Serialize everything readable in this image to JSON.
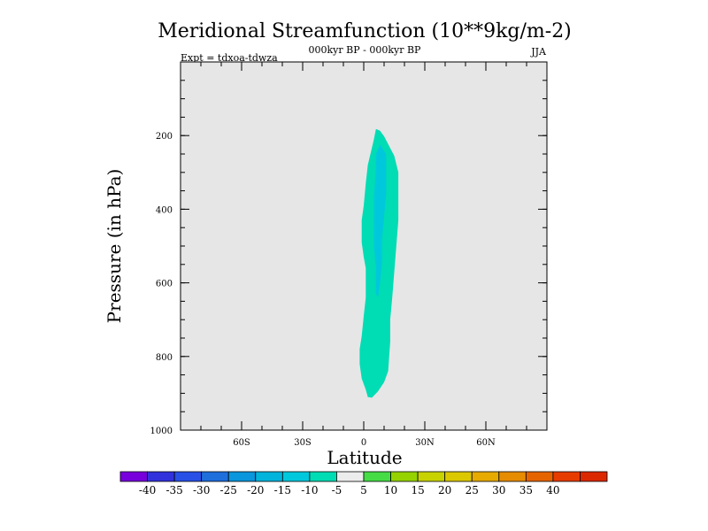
{
  "chart_data": {
    "type": "heatmap",
    "title": "Meridional Streamfunction (10**9kg/m-2)",
    "subtitle_center": "000kyr BP - 000kyr BP",
    "subtitle_left": "Expt = tdxoa-tdwza",
    "subtitle_right": "JJA",
    "xlabel": "Latitude",
    "ylabel": "Pressure (in hPa)",
    "xlim": [
      -90,
      90
    ],
    "ylim": [
      0,
      1000
    ],
    "y_inverted": true,
    "x_ticks": [
      {
        "value": -60,
        "label": "60S"
      },
      {
        "value": -30,
        "label": "30S"
      },
      {
        "value": 0,
        "label": "0"
      },
      {
        "value": 30,
        "label": "30N"
      },
      {
        "value": 60,
        "label": "60N"
      }
    ],
    "y_ticks": [
      {
        "value": 200,
        "label": "200"
      },
      {
        "value": 400,
        "label": "400"
      },
      {
        "value": 600,
        "label": "600"
      },
      {
        "value": 800,
        "label": "800"
      },
      {
        "value": 1000,
        "label": "1000"
      }
    ],
    "background_color": "#e6e6e6",
    "contours": [
      {
        "level": "-10 to -5",
        "color": "#00dcb4",
        "points": [
          [
            -1,
            452
          ],
          [
            -1,
            430
          ],
          [
            0,
            390
          ],
          [
            1,
            330
          ],
          [
            2,
            280
          ],
          [
            5,
            210
          ],
          [
            6,
            182
          ],
          [
            8,
            187
          ],
          [
            10,
            202
          ],
          [
            15,
            255
          ],
          [
            17,
            300
          ],
          [
            17,
            360
          ],
          [
            17,
            430
          ],
          [
            16,
            500
          ],
          [
            15,
            570
          ],
          [
            14,
            640
          ],
          [
            13,
            700
          ],
          [
            13,
            760
          ],
          [
            12,
            840
          ],
          [
            10,
            870
          ],
          [
            7,
            895
          ],
          [
            4,
            912
          ],
          [
            2,
            910
          ],
          [
            1,
            890
          ],
          [
            -1,
            860
          ],
          [
            -2,
            820
          ],
          [
            -2,
            780
          ],
          [
            -1,
            745
          ],
          [
            0,
            690
          ],
          [
            1,
            640
          ],
          [
            1,
            600
          ],
          [
            1,
            560
          ],
          [
            0,
            530
          ],
          [
            -1,
            490
          ]
        ]
      },
      {
        "level": "-15 to -10",
        "color": "#00c8dc",
        "points": [
          [
            6,
            290
          ],
          [
            6,
            250
          ],
          [
            8,
            225
          ],
          [
            11,
            250
          ],
          [
            11,
            300
          ],
          [
            11,
            360
          ],
          [
            10,
            420
          ],
          [
            9,
            480
          ],
          [
            9,
            540
          ],
          [
            8,
            600
          ],
          [
            7,
            640
          ],
          [
            6,
            630
          ],
          [
            6,
            560
          ],
          [
            5,
            500
          ],
          [
            5,
            440
          ],
          [
            5,
            370
          ]
        ]
      }
    ],
    "colorbar": {
      "colors": [
        "#7800dc",
        "#3232dc",
        "#2850e6",
        "#1e6edc",
        "#0a96dc",
        "#00b4dc",
        "#00c8dc",
        "#00dcb4",
        "#ececec",
        "#46dc46",
        "#96d200",
        "#c8d200",
        "#dcc800",
        "#e6aa00",
        "#e68c00",
        "#e66400",
        "#e63c00",
        "#dc2800"
      ],
      "labels": [
        "-40",
        "-35",
        "-30",
        "-25",
        "-20",
        "-15",
        "-10",
        "-5",
        "5",
        "10",
        "15",
        "20",
        "25",
        "30",
        "35",
        "40"
      ]
    }
  }
}
